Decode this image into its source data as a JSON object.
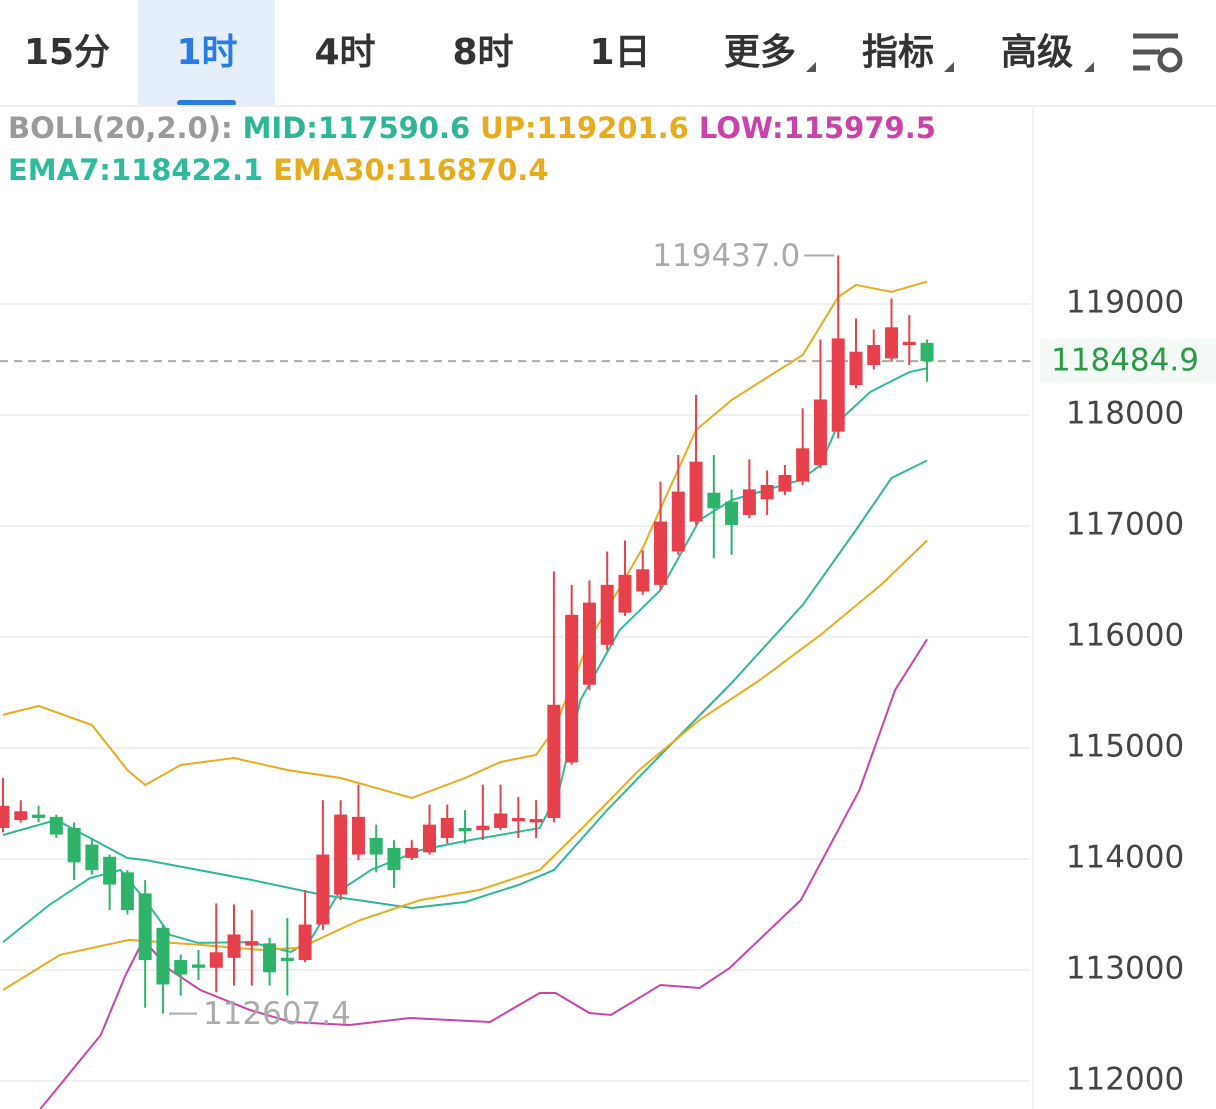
{
  "header": {
    "tabs": [
      "15分",
      "1时",
      "4时",
      "8时",
      "1日",
      "更多",
      "指标",
      "高级"
    ],
    "active_tab": 1
  },
  "chart_data": {
    "type": "candlestick",
    "indicator_label": "BOLL(20,2.0):",
    "indicator_color": "#9a9a9a",
    "up_color": "#e5404c",
    "down_color": "#2db36a",
    "ylim": [
      111748,
      119937
    ],
    "xlim": [
      -0.17,
      68.26
    ],
    "yticks": [
      119000,
      118000,
      117000,
      116000,
      115000,
      114000,
      113000,
      112000
    ],
    "grid": true,
    "open": [
      114280,
      114350,
      114400,
      114380,
      114280,
      114130,
      114020,
      113880,
      113690,
      113380,
      113090,
      113050,
      113020,
      113110,
      113220,
      113240,
      113110,
      113090,
      113410,
      113680,
      114040,
      114190,
      114100,
      114010,
      114060,
      114190,
      114280,
      114260,
      114280,
      114340,
      114330,
      114370,
      114870,
      115570,
      115930,
      116220,
      116410,
      116470,
      116770,
      117040,
      117300,
      117220,
      117100,
      117240,
      117310,
      117400,
      117550,
      117850,
      118270,
      118450,
      118510,
      118630,
      118650
    ],
    "high": [
      114730,
      114530,
      114480,
      114400,
      114330,
      114190,
      114040,
      113900,
      113810,
      113400,
      113140,
      113180,
      113600,
      113590,
      113540,
      113290,
      113470,
      113720,
      114530,
      114530,
      114670,
      114310,
      114170,
      114170,
      114490,
      114490,
      114440,
      114670,
      114670,
      114560,
      114530,
      116590,
      116470,
      116510,
      116770,
      116870,
      116780,
      117400,
      117640,
      118180,
      117640,
      117330,
      117600,
      117500,
      117550,
      118060,
      118680,
      119437.0,
      118870,
      118770,
      119050,
      118900,
      118680
    ],
    "low": [
      114240,
      114330,
      114330,
      114190,
      113810,
      113860,
      113540,
      113500,
      112660,
      112607.4,
      112770,
      112910,
      112800,
      112860,
      112860,
      112860,
      112770,
      113070,
      113360,
      113630,
      113990,
      113880,
      113740,
      113990,
      114040,
      114140,
      114140,
      114170,
      114260,
      114190,
      114190,
      114330,
      114850,
      115520,
      115880,
      116190,
      116380,
      116420,
      116740,
      117010,
      116710,
      116740,
      117070,
      117100,
      117280,
      117370,
      117520,
      117790,
      118240,
      118410,
      118480,
      118450,
      118300
    ],
    "close": [
      114480,
      114430,
      114370,
      114220,
      113970,
      113900,
      113770,
      113540,
      113090,
      112870,
      112960,
      113020,
      113160,
      113320,
      113260,
      112980,
      113080,
      113410,
      114040,
      114400,
      114380,
      114040,
      113900,
      114100,
      114310,
      114370,
      114250,
      114300,
      114410,
      114370,
      114360,
      115390,
      116200,
      116310,
      116470,
      116560,
      116610,
      117040,
      117310,
      117580,
      117160,
      117010,
      117330,
      117370,
      117460,
      117700,
      118140,
      118690,
      118570,
      118630,
      118790,
      118660,
      118484.9
    ],
    "series": [
      {
        "name": "MID:",
        "legend_value": 117590.6,
        "color": "#2fb697",
        "legend_row": 0,
        "x": [
          0,
          3,
          7,
          8,
          11,
          14,
          18,
          23,
          26,
          29,
          31,
          34,
          37,
          41,
          45,
          48,
          50,
          52
        ],
        "values": [
          114216,
          114352,
          114009,
          113991,
          113901,
          113811,
          113676,
          113559,
          113613,
          113766,
          113901,
          114442,
          114937,
          115586,
          116289,
          116964,
          117433,
          117590.6
        ]
      },
      {
        "name": "UP:",
        "legend_value": 119201.6,
        "color": "#e6ac1e",
        "legend_row": 0,
        "x": [
          0,
          2,
          5,
          7,
          8,
          10,
          13,
          16,
          19,
          23,
          26,
          28,
          30,
          31,
          33,
          36,
          39,
          41,
          45,
          47,
          48,
          50,
          52
        ],
        "values": [
          115298,
          115379,
          115207,
          114802,
          114667,
          114847,
          114910,
          114802,
          114730,
          114550,
          114730,
          114874,
          114937,
          115162,
          115973,
          116802,
          117865,
          118135,
          118541,
          119063,
          119172,
          119109,
          119201.6
        ]
      },
      {
        "name": "LOW:",
        "legend_value": 115979.5,
        "color": "#c944aa",
        "legend_row": 0,
        "x": [
          2.1,
          5.5,
          6.9,
          7.9,
          9.4,
          11.1,
          13.9,
          16.2,
          19.5,
          22.9,
          27.4,
          30.2,
          31.1,
          33.0,
          34.2,
          37.0,
          39.2,
          40.9,
          44.9,
          48.2,
          50.2,
          52
        ],
        "values": [
          111748,
          112415,
          112955,
          113271,
          113001,
          112820,
          112640,
          112532,
          112505,
          112568,
          112532,
          112793,
          112793,
          112613,
          112595,
          112865,
          112838,
          113019,
          113631,
          114622,
          115523,
          115979.5
        ]
      },
      {
        "name": "EMA7:",
        "legend_value": 118422.1,
        "color": "#2dbb9c",
        "legend_row": 1,
        "x": [
          0,
          2.6,
          4.9,
          6.6,
          8,
          9.4,
          11,
          13.9,
          16.2,
          17.3,
          19,
          20.7,
          23.5,
          26.3,
          30.2,
          31.3,
          32.5,
          34.7,
          37,
          39.2,
          41,
          44.9,
          46,
          47.1,
          48.8,
          51,
          52
        ],
        "values": [
          113252,
          113586,
          113829,
          113901,
          113631,
          113316,
          113244,
          113252,
          113162,
          113271,
          113721,
          113901,
          114081,
          114171,
          114279,
          114622,
          115433,
          116063,
          116423,
          117054,
          117234,
          117415,
          117550,
          117955,
          118207,
          118387,
          118422.1
        ]
      },
      {
        "name": "EMA30:",
        "legend_value": 116870.4,
        "color": "#e6ac1e",
        "legend_row": 1,
        "x": [
          0,
          3.2,
          7.1,
          11.1,
          14.5,
          16.7,
          20.1,
          23.5,
          26.8,
          30.2,
          32.5,
          35.8,
          39.2,
          42.6,
          46,
          49.4,
          52
        ],
        "values": [
          112820,
          113136,
          113271,
          113226,
          113181,
          113199,
          113451,
          113631,
          113721,
          113901,
          114262,
          114802,
          115253,
          115613,
          116018,
          116469,
          116870.4
        ]
      }
    ],
    "max_marker": {
      "value": 119437.0,
      "label": "119437.0",
      "x": 47
    },
    "min_marker": {
      "value": 112607.4,
      "x": 9
    },
    "last_price": {
      "value": 118484.9,
      "color": "#2a9a4a"
    }
  }
}
